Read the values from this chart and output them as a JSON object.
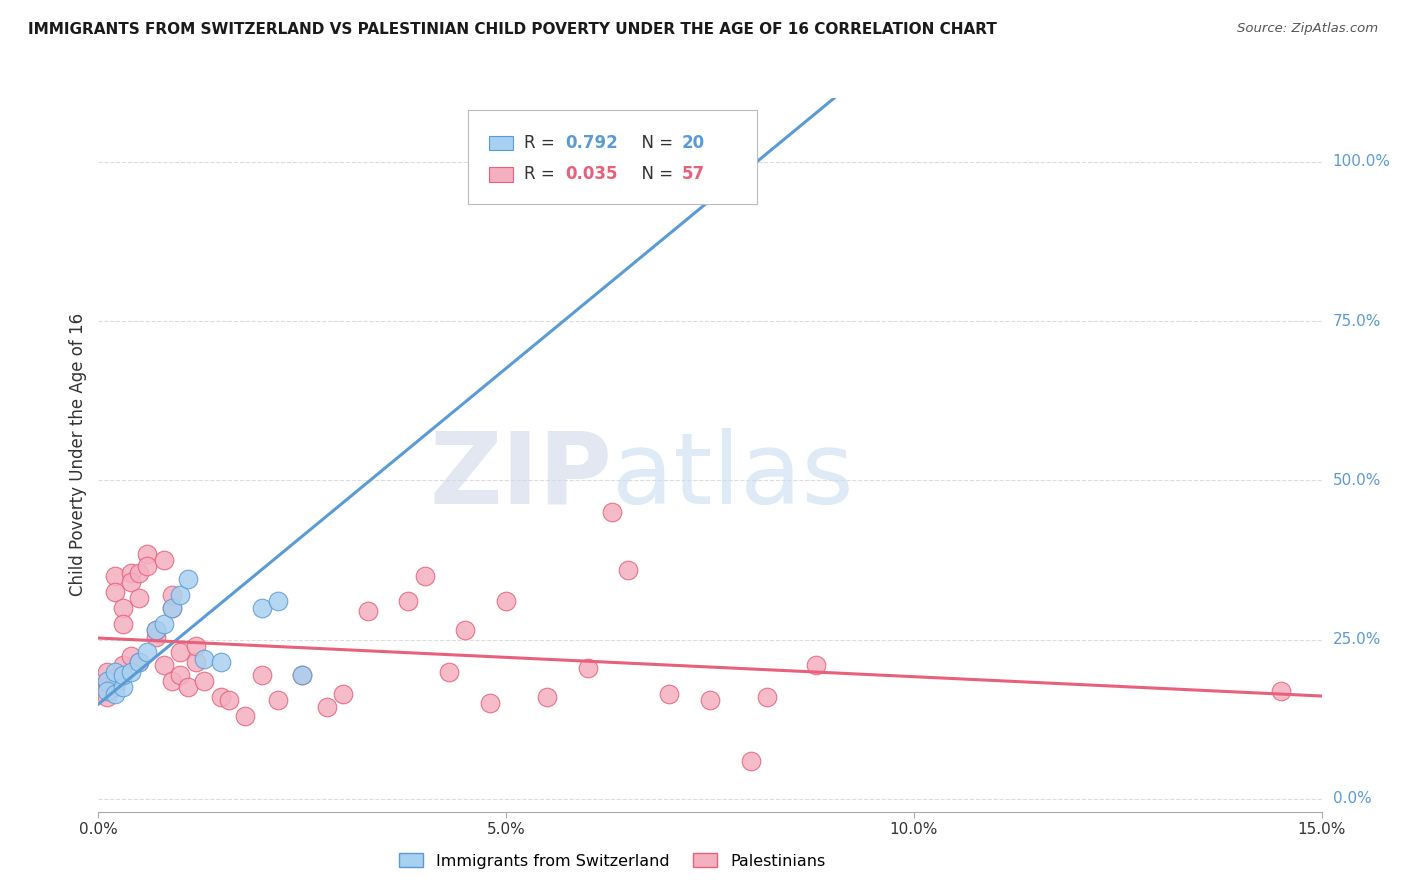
{
  "title": "IMMIGRANTS FROM SWITZERLAND VS PALESTINIAN CHILD POVERTY UNDER THE AGE OF 16 CORRELATION CHART",
  "source": "Source: ZipAtlas.com",
  "ylabel": "Child Poverty Under the Age of 16",
  "xlim": [
    0.0,
    0.15
  ],
  "ylim": [
    -0.02,
    1.1
  ],
  "xticks": [
    0.0,
    0.05,
    0.1,
    0.15
  ],
  "xticklabels": [
    "0.0%",
    "5.0%",
    "10.0%",
    "15.0%"
  ],
  "yticks_right": [
    0.0,
    0.25,
    0.5,
    0.75,
    1.0
  ],
  "yticklabels_right": [
    "0.0%",
    "25.0%",
    "50.0%",
    "75.0%",
    "100.0%"
  ],
  "legend_labels": [
    "Immigrants from Switzerland",
    "Palestinians"
  ],
  "blue_R": "0.792",
  "blue_N": "20",
  "pink_R": "0.035",
  "pink_N": "57",
  "blue_color": "#A8D0F0",
  "pink_color": "#F4B0C0",
  "blue_line_color": "#5B9BD5",
  "pink_line_color": "#E8607A",
  "watermark": "ZIPatlas",
  "watermark_color": "#C8DCF0",
  "grid_color": "#DCDCDC",
  "blue_scatter_x": [
    0.001,
    0.001,
    0.002,
    0.002,
    0.003,
    0.003,
    0.004,
    0.005,
    0.006,
    0.007,
    0.008,
    0.009,
    0.01,
    0.011,
    0.013,
    0.015,
    0.02,
    0.022,
    0.025,
    0.068
  ],
  "blue_scatter_y": [
    0.185,
    0.17,
    0.165,
    0.2,
    0.175,
    0.195,
    0.2,
    0.215,
    0.23,
    0.265,
    0.275,
    0.3,
    0.32,
    0.345,
    0.22,
    0.215,
    0.3,
    0.31,
    0.195,
    0.975
  ],
  "pink_scatter_x": [
    0.001,
    0.001,
    0.001,
    0.001,
    0.002,
    0.002,
    0.002,
    0.002,
    0.003,
    0.003,
    0.003,
    0.004,
    0.004,
    0.004,
    0.005,
    0.005,
    0.005,
    0.006,
    0.006,
    0.007,
    0.007,
    0.008,
    0.008,
    0.009,
    0.009,
    0.009,
    0.01,
    0.01,
    0.011,
    0.012,
    0.012,
    0.013,
    0.015,
    0.016,
    0.018,
    0.02,
    0.022,
    0.025,
    0.028,
    0.03,
    0.033,
    0.038,
    0.04,
    0.043,
    0.045,
    0.048,
    0.05,
    0.055,
    0.06,
    0.063,
    0.065,
    0.07,
    0.075,
    0.08,
    0.082,
    0.088,
    0.145
  ],
  "pink_scatter_y": [
    0.185,
    0.2,
    0.175,
    0.16,
    0.35,
    0.325,
    0.19,
    0.175,
    0.3,
    0.275,
    0.21,
    0.355,
    0.34,
    0.225,
    0.355,
    0.315,
    0.215,
    0.385,
    0.365,
    0.255,
    0.265,
    0.375,
    0.21,
    0.3,
    0.32,
    0.185,
    0.23,
    0.195,
    0.175,
    0.215,
    0.24,
    0.185,
    0.16,
    0.155,
    0.13,
    0.195,
    0.155,
    0.195,
    0.145,
    0.165,
    0.295,
    0.31,
    0.35,
    0.2,
    0.265,
    0.15,
    0.31,
    0.16,
    0.205,
    0.45,
    0.36,
    0.165,
    0.155,
    0.06,
    0.16,
    0.21,
    0.17
  ]
}
